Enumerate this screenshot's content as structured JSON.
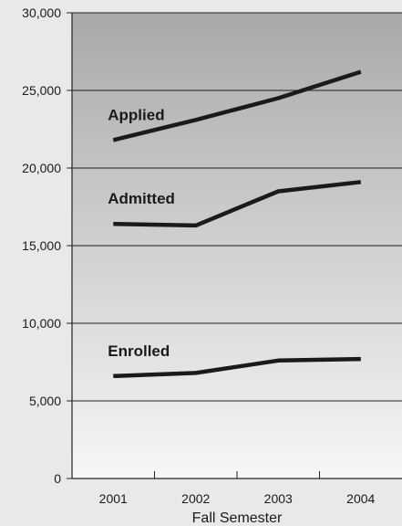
{
  "chart_data": {
    "type": "line",
    "xlabel": "Fall Semester",
    "ylabel": "",
    "categories": [
      "2001",
      "2002",
      "2003",
      "2004"
    ],
    "ylim": [
      0,
      30000
    ],
    "yticks": [
      0,
      5000,
      10000,
      15000,
      20000,
      25000,
      30000
    ],
    "ytick_labels": [
      "0",
      "5,000",
      "10,000",
      "15,000",
      "20,000",
      "25,000",
      "30,000"
    ],
    "grid": true,
    "legend": "none (series labeled inline)",
    "series": [
      {
        "name": "Applied",
        "values": [
          21800,
          23100,
          24500,
          26200
        ]
      },
      {
        "name": "Admitted",
        "values": [
          16400,
          16300,
          18500,
          19100
        ]
      },
      {
        "name": "Enrolled",
        "values": [
          6600,
          6800,
          7600,
          7700
        ]
      }
    ],
    "line_color": "#1a1a1a",
    "background_gradient": [
      "#a9a9a9",
      "#f7f7f7"
    ]
  }
}
